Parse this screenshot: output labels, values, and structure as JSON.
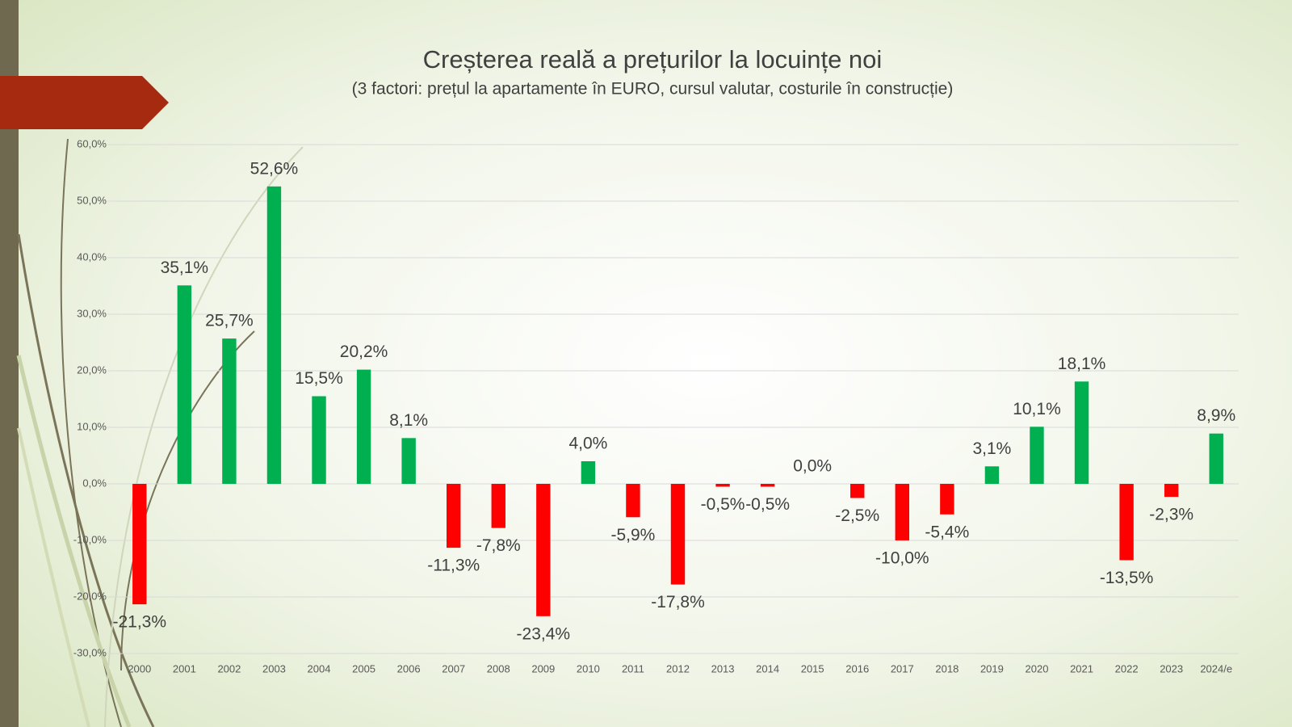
{
  "chart_data": {
    "type": "bar",
    "title": "Creșterea reală a prețurilor la locuințe noi",
    "subtitle": "(3 factori: prețul la apartamente în EURO, cursul valutar, costurile în construcție)",
    "categories": [
      "2000",
      "2001",
      "2002",
      "2003",
      "2004",
      "2005",
      "2006",
      "2007",
      "2008",
      "2009",
      "2010",
      "2011",
      "2012",
      "2013",
      "2014",
      "2015",
      "2016",
      "2017",
      "2018",
      "2019",
      "2020",
      "2021",
      "2022",
      "2023",
      "2024/e"
    ],
    "values": [
      -21.3,
      35.1,
      25.7,
      52.6,
      15.5,
      20.2,
      8.1,
      -11.3,
      -7.8,
      -23.4,
      4.0,
      -5.9,
      -17.8,
      -0.5,
      -0.5,
      0.0,
      -2.5,
      -10.0,
      -5.4,
      3.1,
      10.1,
      18.1,
      -13.5,
      -2.3,
      8.9
    ],
    "value_labels": [
      "-21,3%",
      "35,1%",
      "25,7%",
      "52,6%",
      "15,5%",
      "20,2%",
      "8,1%",
      "-11,3%",
      "-7,8%",
      "-23,4%",
      "4,0%",
      "-5,9%",
      "-17,8%",
      "-0,5%",
      "-0,5%",
      "0,0%",
      "-2,5%",
      "-10,0%",
      "-5,4%",
      "3,1%",
      "10,1%",
      "18,1%",
      "-13,5%",
      "-2,3%",
      "8,9%"
    ],
    "color": "#00b050",
    "negative_color": "#ff0000",
    "ylim": [
      -30,
      60
    ],
    "yticks": [
      {
        "value": -30,
        "label": "-30,0%"
      },
      {
        "value": -20,
        "label": "-20,0%"
      },
      {
        "value": -10,
        "label": "-10,0%"
      },
      {
        "value": 0,
        "label": "0,0%"
      },
      {
        "value": 10,
        "label": "10,0%"
      },
      {
        "value": 20,
        "label": "20,0%"
      },
      {
        "value": 30,
        "label": "30,0%"
      },
      {
        "value": 40,
        "label": "40,0%"
      },
      {
        "value": 50,
        "label": "50,0%"
      },
      {
        "value": 60,
        "label": "60,0%"
      }
    ],
    "grid": true
  }
}
